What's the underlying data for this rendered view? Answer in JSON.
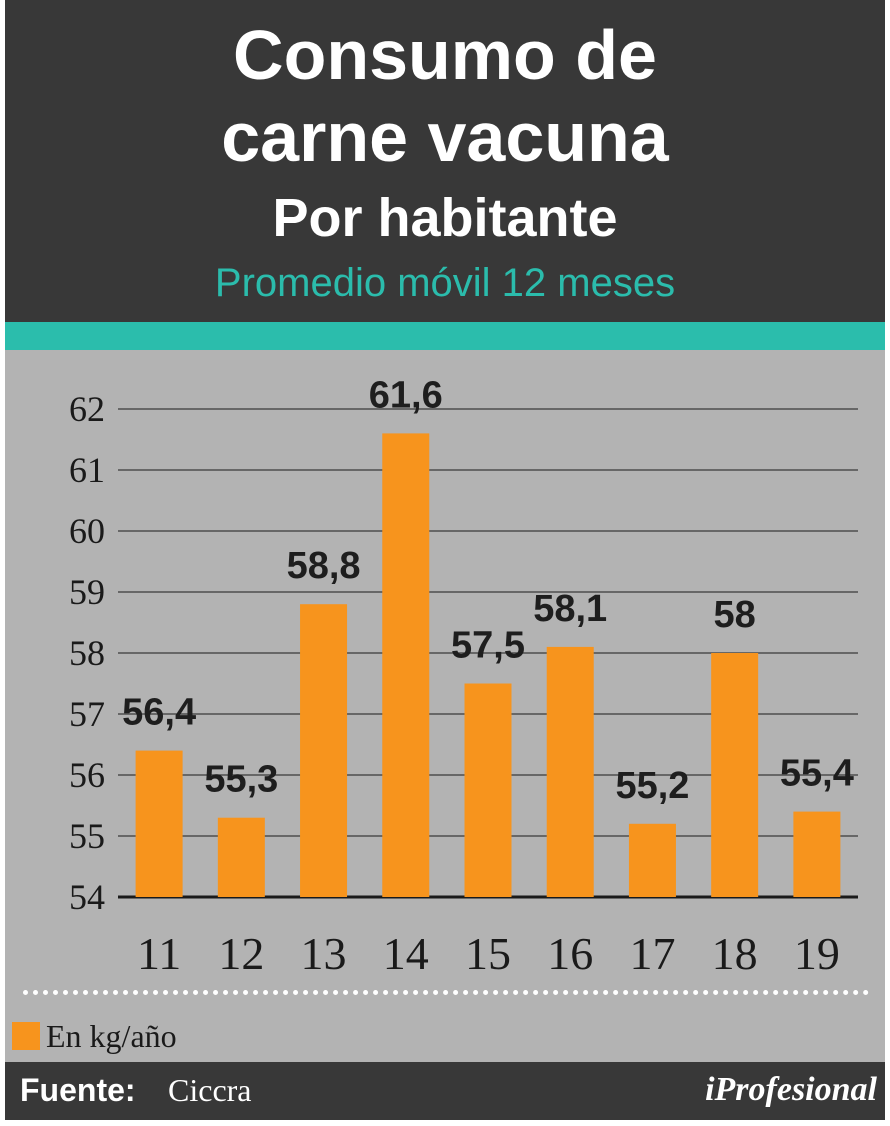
{
  "header": {
    "title_line1": "Consumo de",
    "title_line2": "carne vacuna",
    "subtitle": "Por habitante",
    "note": "Promedio móvil 12 meses"
  },
  "chart_data": {
    "type": "bar",
    "categories": [
      "11",
      "12",
      "13",
      "14",
      "15",
      "16",
      "17",
      "18",
      "19"
    ],
    "values": [
      56.4,
      55.3,
      58.8,
      61.6,
      57.5,
      58.1,
      55.2,
      58,
      55.4
    ],
    "data_labels": [
      "56,4",
      "55,3",
      "58,8",
      "61,6",
      "57,5",
      "58,1",
      "55,2",
      "58",
      "55,4"
    ],
    "yticks": [
      "54",
      "55",
      "56",
      "57",
      "58",
      "59",
      "60",
      "61",
      "62"
    ],
    "ylim": [
      54,
      62
    ],
    "grid": true,
    "bar_color": "#f7941d",
    "legend": {
      "label": "En kg/año",
      "position": "bottom-left"
    }
  },
  "footer": {
    "source_label": "Fuente:",
    "source_value": "Ciccra",
    "brand": "iProfesional"
  },
  "colors": {
    "header_bg": "#383838",
    "accent": "#2bbdac",
    "panel_bg": "#b3b3b3",
    "bar": "#f7941d"
  }
}
